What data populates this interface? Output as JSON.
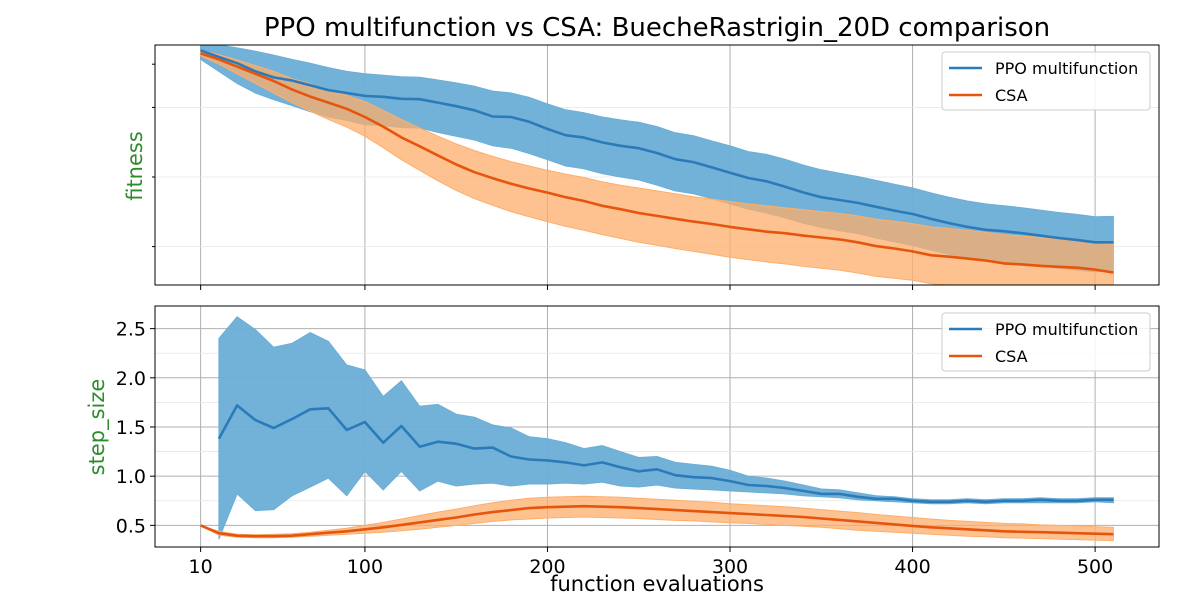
{
  "chart_data": {
    "title": "PPO multifunction vs CSA: BuecheRastrigin_20D comparison",
    "xlabel": "function evaluations",
    "x_ticks": [
      10,
      100,
      200,
      300,
      400,
      500
    ],
    "xlim": [
      -15,
      535
    ],
    "colors": {
      "ppo": "#2b7bba",
      "ppo_band": "#6baed6",
      "csa": "#e6550d",
      "csa_band": "#fdae6b"
    },
    "panels": [
      {
        "name": "fitness",
        "type": "line",
        "ylabel": "fitness",
        "ylim": [
          0,
          1
        ],
        "y_ticks": [],
        "y_tick_labels": false,
        "grid": true,
        "legend": "top-right",
        "series": [
          {
            "name": "PPO multifunction",
            "x": [
              10,
              20,
              30,
              40,
              50,
              60,
              70,
              80,
              90,
              100,
              110,
              120,
              130,
              140,
              150,
              160,
              170,
              180,
              190,
              200,
              210,
              220,
              230,
              240,
              250,
              260,
              270,
              280,
              290,
              300,
              310,
              320,
              330,
              340,
              350,
              360,
              370,
              380,
              390,
              400,
              410,
              420,
              430,
              440,
              450,
              460,
              470,
              480,
              490,
              500,
              510
            ],
            "y": [
              0.978,
              0.95,
              0.924,
              0.89,
              0.865,
              0.852,
              0.832,
              0.812,
              0.8,
              0.788,
              0.784,
              0.776,
              0.774,
              0.76,
              0.745,
              0.728,
              0.702,
              0.7,
              0.68,
              0.65,
              0.624,
              0.614,
              0.594,
              0.58,
              0.57,
              0.55,
              0.524,
              0.512,
              0.49,
              0.468,
              0.446,
              0.432,
              0.41,
              0.386,
              0.366,
              0.354,
              0.342,
              0.326,
              0.31,
              0.296,
              0.276,
              0.258,
              0.242,
              0.23,
              0.224,
              0.216,
              0.206,
              0.196,
              0.188,
              0.178,
              0.178
            ],
            "lower": [
              0.94,
              0.89,
              0.84,
              0.8,
              0.772,
              0.748,
              0.722,
              0.7,
              0.686,
              0.668,
              0.664,
              0.656,
              0.654,
              0.636,
              0.62,
              0.604,
              0.58,
              0.57,
              0.548,
              0.522,
              0.496,
              0.484,
              0.464,
              0.45,
              0.438,
              0.416,
              0.392,
              0.38,
              0.36,
              0.338,
              0.316,
              0.3,
              0.28,
              0.258,
              0.24,
              0.226,
              0.214,
              0.196,
              0.18,
              0.164,
              0.146,
              0.128,
              0.114,
              0.102,
              0.094,
              0.088,
              0.08,
              0.07,
              0.062,
              0.056,
              0.06
            ],
            "upper": [
              1.01,
              1.0,
              0.988,
              0.974,
              0.958,
              0.94,
              0.924,
              0.906,
              0.89,
              0.88,
              0.874,
              0.868,
              0.866,
              0.854,
              0.842,
              0.828,
              0.808,
              0.8,
              0.782,
              0.754,
              0.73,
              0.718,
              0.7,
              0.688,
              0.678,
              0.66,
              0.634,
              0.622,
              0.6,
              0.58,
              0.556,
              0.544,
              0.524,
              0.5,
              0.48,
              0.466,
              0.452,
              0.436,
              0.42,
              0.404,
              0.384,
              0.366,
              0.35,
              0.338,
              0.33,
              0.322,
              0.312,
              0.302,
              0.294,
              0.284,
              0.286
            ]
          },
          {
            "name": "CSA",
            "x": [
              10,
              20,
              30,
              40,
              50,
              60,
              70,
              80,
              90,
              100,
              110,
              120,
              130,
              140,
              150,
              160,
              170,
              180,
              190,
              200,
              210,
              220,
              230,
              240,
              250,
              260,
              270,
              280,
              290,
              300,
              310,
              320,
              330,
              340,
              350,
              360,
              370,
              380,
              390,
              400,
              410,
              420,
              430,
              440,
              450,
              460,
              470,
              480,
              490,
              500,
              510
            ],
            "y": [
              0.965,
              0.94,
              0.91,
              0.88,
              0.85,
              0.815,
              0.785,
              0.76,
              0.734,
              0.7,
              0.66,
              0.615,
              0.578,
              0.54,
              0.502,
              0.47,
              0.445,
              0.422,
              0.402,
              0.385,
              0.366,
              0.35,
              0.33,
              0.316,
              0.3,
              0.288,
              0.276,
              0.264,
              0.254,
              0.242,
              0.232,
              0.222,
              0.216,
              0.206,
              0.198,
              0.19,
              0.178,
              0.162,
              0.152,
              0.14,
              0.124,
              0.118,
              0.11,
              0.102,
              0.09,
              0.086,
              0.08,
              0.076,
              0.072,
              0.064,
              0.052
            ],
            "lower": [
              0.955,
              0.92,
              0.88,
              0.84,
              0.8,
              0.76,
              0.724,
              0.69,
              0.658,
              0.62,
              0.572,
              0.522,
              0.478,
              0.434,
              0.394,
              0.36,
              0.332,
              0.306,
              0.284,
              0.264,
              0.244,
              0.228,
              0.21,
              0.194,
              0.178,
              0.166,
              0.152,
              0.14,
              0.128,
              0.116,
              0.106,
              0.096,
              0.088,
              0.078,
              0.07,
              0.062,
              0.05,
              0.036,
              0.028,
              0.02,
              0.006,
              0.0,
              -0.006,
              -0.012,
              -0.022,
              -0.028,
              -0.034,
              -0.038,
              -0.042,
              -0.05,
              -0.06
            ],
            "upper": [
              0.978,
              0.96,
              0.938,
              0.914,
              0.89,
              0.86,
              0.838,
              0.812,
              0.79,
              0.764,
              0.728,
              0.69,
              0.654,
              0.62,
              0.588,
              0.56,
              0.536,
              0.514,
              0.496,
              0.478,
              0.462,
              0.448,
              0.43,
              0.416,
              0.404,
              0.392,
              0.38,
              0.368,
              0.358,
              0.348,
              0.338,
              0.33,
              0.322,
              0.314,
              0.306,
              0.298,
              0.288,
              0.274,
              0.266,
              0.256,
              0.242,
              0.236,
              0.228,
              0.22,
              0.21,
              0.204,
              0.198,
              0.192,
              0.188,
              0.18,
              0.17
            ]
          }
        ]
      },
      {
        "name": "step_size",
        "type": "line",
        "ylabel": "step_size",
        "ylim": [
          0.28,
          2.73
        ],
        "y_ticks": [
          0.5,
          1.0,
          1.5,
          2.0,
          2.5
        ],
        "y_tick_labels": true,
        "grid": true,
        "legend": "top-right",
        "series": [
          {
            "name": "PPO multifunction",
            "x": [
              20,
              30,
              40,
              50,
              60,
              70,
              80,
              90,
              100,
              110,
              120,
              130,
              140,
              150,
              160,
              170,
              180,
              190,
              200,
              210,
              220,
              230,
              240,
              250,
              260,
              270,
              280,
              290,
              300,
              310,
              320,
              330,
              340,
              350,
              360,
              370,
              380,
              390,
              400,
              410,
              420,
              430,
              440,
              450,
              460,
              470,
              480,
              490,
              500,
              510
            ],
            "y": [
              1.38,
              1.72,
              1.57,
              1.49,
              1.58,
              1.68,
              1.69,
              1.47,
              1.55,
              1.34,
              1.51,
              1.3,
              1.35,
              1.33,
              1.28,
              1.29,
              1.2,
              1.17,
              1.16,
              1.14,
              1.11,
              1.14,
              1.09,
              1.05,
              1.07,
              1.01,
              0.99,
              0.98,
              0.95,
              0.91,
              0.9,
              0.88,
              0.85,
              0.82,
              0.82,
              0.79,
              0.77,
              0.77,
              0.75,
              0.74,
              0.74,
              0.75,
              0.74,
              0.75,
              0.75,
              0.76,
              0.75,
              0.75,
              0.76,
              0.76
            ],
            "lower": [
              0.36,
              0.82,
              0.65,
              0.66,
              0.8,
              0.89,
              0.98,
              0.8,
              1.05,
              0.86,
              1.05,
              0.85,
              0.95,
              0.9,
              0.92,
              0.93,
              0.9,
              0.92,
              0.92,
              0.93,
              0.92,
              0.94,
              0.9,
              0.89,
              0.91,
              0.88,
              0.87,
              0.86,
              0.85,
              0.84,
              0.83,
              0.82,
              0.8,
              0.79,
              0.78,
              0.76,
              0.75,
              0.74,
              0.73,
              0.72,
              0.72,
              0.73,
              0.72,
              0.73,
              0.73,
              0.73,
              0.73,
              0.73,
              0.74,
              0.73
            ],
            "upper": [
              2.4,
              2.62,
              2.49,
              2.31,
              2.35,
              2.46,
              2.37,
              2.13,
              2.08,
              1.81,
              1.97,
              1.71,
              1.73,
              1.63,
              1.6,
              1.52,
              1.49,
              1.4,
              1.38,
              1.34,
              1.28,
              1.31,
              1.25,
              1.19,
              1.2,
              1.14,
              1.12,
              1.1,
              1.06,
              1.0,
              0.98,
              0.95,
              0.91,
              0.87,
              0.86,
              0.83,
              0.8,
              0.79,
              0.77,
              0.76,
              0.76,
              0.77,
              0.76,
              0.77,
              0.77,
              0.78,
              0.77,
              0.77,
              0.78,
              0.78
            ]
          },
          {
            "name": "CSA",
            "x": [
              10,
              20,
              30,
              40,
              50,
              60,
              70,
              80,
              90,
              100,
              110,
              120,
              130,
              140,
              150,
              160,
              170,
              180,
              190,
              200,
              210,
              220,
              230,
              240,
              250,
              260,
              270,
              280,
              290,
              300,
              310,
              320,
              330,
              340,
              350,
              360,
              370,
              380,
              390,
              400,
              410,
              420,
              430,
              440,
              450,
              460,
              470,
              480,
              490,
              500,
              510
            ],
            "y": [
              0.5,
              0.42,
              0.395,
              0.39,
              0.39,
              0.395,
              0.41,
              0.425,
              0.44,
              0.46,
              0.48,
              0.505,
              0.53,
              0.555,
              0.58,
              0.61,
              0.635,
              0.655,
              0.675,
              0.685,
              0.69,
              0.695,
              0.69,
              0.685,
              0.675,
              0.665,
              0.655,
              0.645,
              0.635,
              0.625,
              0.615,
              0.605,
              0.595,
              0.585,
              0.57,
              0.555,
              0.54,
              0.525,
              0.51,
              0.495,
              0.48,
              0.47,
              0.46,
              0.45,
              0.44,
              0.435,
              0.43,
              0.425,
              0.42,
              0.415,
              0.41
            ],
            "lower": [
              0.5,
              0.4,
              0.38,
              0.375,
              0.375,
              0.38,
              0.39,
              0.4,
              0.41,
              0.42,
              0.43,
              0.445,
              0.46,
              0.48,
              0.5,
              0.52,
              0.54,
              0.555,
              0.565,
              0.575,
              0.58,
              0.585,
              0.58,
              0.575,
              0.57,
              0.56,
              0.55,
              0.545,
              0.535,
              0.525,
              0.52,
              0.51,
              0.5,
              0.49,
              0.48,
              0.465,
              0.45,
              0.44,
              0.43,
              0.42,
              0.41,
              0.4,
              0.39,
              0.385,
              0.375,
              0.37,
              0.365,
              0.36,
              0.355,
              0.35,
              0.345
            ],
            "upper": [
              0.5,
              0.44,
              0.41,
              0.405,
              0.41,
              0.415,
              0.43,
              0.45,
              0.47,
              0.5,
              0.53,
              0.565,
              0.6,
              0.635,
              0.665,
              0.7,
              0.73,
              0.755,
              0.775,
              0.785,
              0.79,
              0.795,
              0.79,
              0.785,
              0.775,
              0.765,
              0.755,
              0.745,
              0.735,
              0.72,
              0.71,
              0.7,
              0.69,
              0.675,
              0.66,
              0.645,
              0.63,
              0.61,
              0.595,
              0.58,
              0.565,
              0.55,
              0.54,
              0.53,
              0.52,
              0.515,
              0.505,
              0.5,
              0.495,
              0.485,
              0.48
            ]
          }
        ]
      }
    ]
  }
}
